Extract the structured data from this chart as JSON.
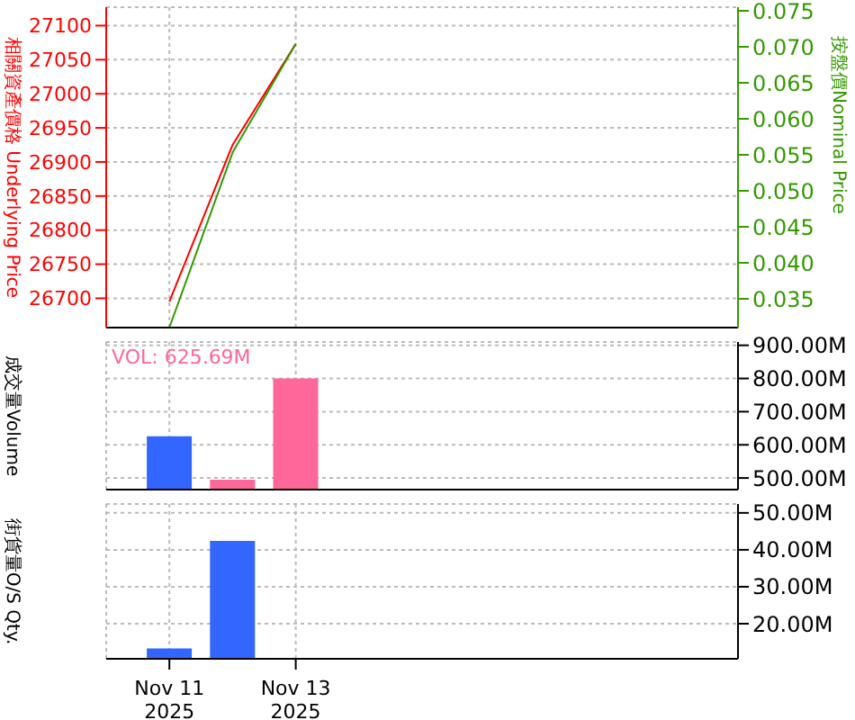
{
  "chart_data": [
    {
      "type": "line",
      "ylabel": "相關資產價格 Underlying Price",
      "y2label": "按盤價Nominal Price",
      "x": [
        "2025-11-11",
        "2025-11-12",
        "2025-11-13"
      ],
      "xlim": [
        "2025-11-10",
        "2025-11-20"
      ],
      "xticks": [
        {
          "value": "2025-11-11",
          "label": null
        },
        {
          "value": "2025-11-13",
          "label": null
        }
      ],
      "series": [
        {
          "color": "#ff0000",
          "values": [
            26695,
            26925,
            27073
          ]
        },
        {
          "color": "#339900",
          "axis": "y2",
          "values": [
            0.031,
            0.0553,
            0.0704
          ]
        }
      ],
      "ylim": [
        26657,
        27127
      ],
      "yticks": [
        26700,
        26750,
        26800,
        26850,
        26900,
        26950,
        27000,
        27050,
        27100
      ],
      "y2lim": [
        0.031,
        0.0755
      ],
      "y2ticks": [
        0.035,
        {
          "value": 0.04,
          "label": "0.040"
        },
        0.045,
        {
          "value": 0.05,
          "label": "0.050"
        },
        0.055,
        {
          "value": 0.06,
          "label": "0.060"
        },
        0.065,
        {
          "value": 0.07,
          "label": "0.070"
        },
        0.075
      ],
      "grid": true,
      "tick_labels": "y"
    },
    {
      "type": "bar",
      "ylabel": "成交量Volume",
      "annotations": [
        "VOL: 625.69M"
      ],
      "x": [
        "2025-11-11",
        "2025-11-12",
        "2025-11-13"
      ],
      "xlim": [
        "2025-11-10",
        "2025-11-20"
      ],
      "xticks": [
        {
          "value": "2025-11-11",
          "label": null
        },
        {
          "value": "2025-11-13",
          "label": null
        }
      ],
      "values": [
        625.69,
        495,
        800
      ],
      "colors": [
        "#3366ff",
        "#ff6699",
        "#ff6699"
      ],
      "ylim": [
        465,
        910
      ],
      "yticks": [
        {
          "value": 500,
          "label": "500.00M"
        },
        {
          "value": 600,
          "label": "600.00M"
        },
        {
          "value": 700,
          "label": "700.00M"
        },
        {
          "value": 800,
          "label": "800.00M"
        },
        {
          "value": 900,
          "label": "900.00M"
        }
      ],
      "grid": true,
      "tick_labels": "y"
    },
    {
      "type": "bar",
      "ylabel": "街貨量O/S Qty.",
      "x": [
        "2025-11-11",
        "2025-11-12"
      ],
      "xlim": [
        "2025-11-10",
        "2025-11-20"
      ],
      "xticks": [
        {
          "value": "2025-11-11",
          "label": "Nov 11\n2025"
        },
        {
          "value": "2025-11-13",
          "label": "Nov 13\n2025"
        }
      ],
      "values": [
        13.3,
        42.4
      ],
      "colors": [
        "#3366ff",
        "#3366ff"
      ],
      "ylim": [
        10.5,
        52.4
      ],
      "yticks": [
        {
          "value": 20,
          "label": "20.00M"
        },
        {
          "value": 30,
          "label": "30.00M"
        },
        {
          "value": 40,
          "label": "40.00M"
        },
        {
          "value": 50,
          "label": "50.00M"
        }
      ],
      "grid": true
    }
  ]
}
